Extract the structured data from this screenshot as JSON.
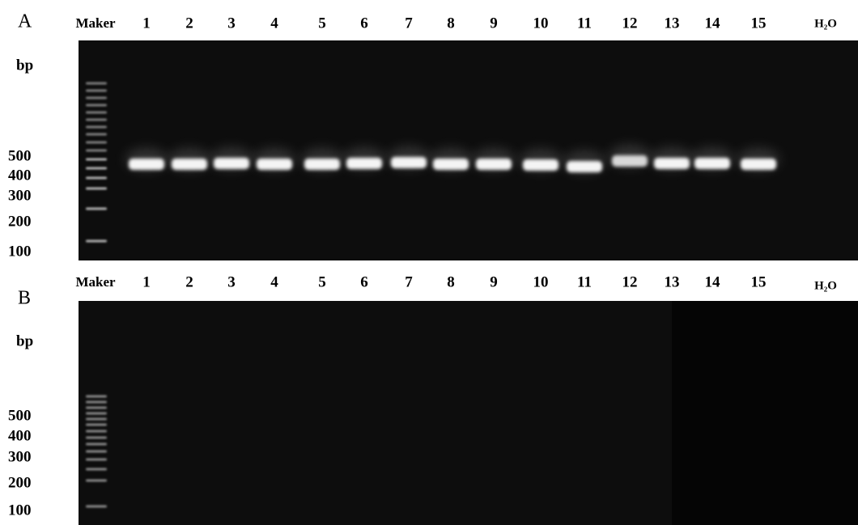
{
  "panels": [
    {
      "label": "A",
      "unit": "bp",
      "lanes": [
        "Maker",
        "1",
        "2",
        "3",
        "4",
        "5",
        "6",
        "7",
        "8",
        "9",
        "10",
        "11",
        "12",
        "13",
        "14",
        "15",
        "H₂O"
      ],
      "sizes": [
        500,
        400,
        300,
        200,
        100
      ]
    },
    {
      "label": "B",
      "unit": "bp",
      "lanes": [
        "Maker",
        "1",
        "2",
        "3",
        "4",
        "5",
        "6",
        "7",
        "8",
        "9",
        "10",
        "11",
        "12",
        "13",
        "14",
        "15",
        "H₂O"
      ],
      "sizes": [
        500,
        400,
        300,
        200,
        100
      ]
    }
  ]
}
